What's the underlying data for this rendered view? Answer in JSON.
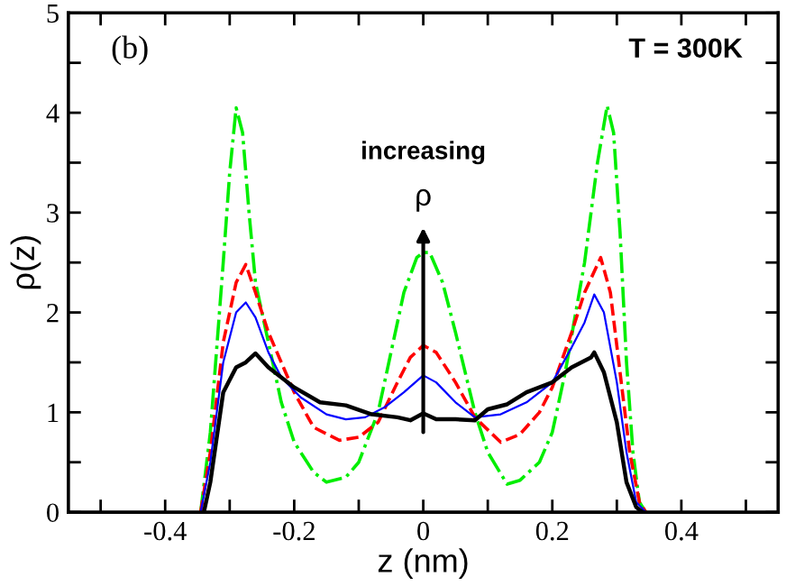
{
  "chart_data": {
    "type": "line",
    "xlabel": "z (nm)",
    "ylabel": "ρ(z)",
    "xlim": [
      -0.55,
      0.55
    ],
    "ylim": [
      0,
      5
    ],
    "xticks": [
      {
        "value": -0.5,
        "label": null
      },
      {
        "value": -0.4,
        "label": "-0.4"
      },
      {
        "value": -0.3,
        "label": null
      },
      {
        "value": -0.2,
        "label": "-0.2"
      },
      {
        "value": -0.1,
        "label": null
      },
      0,
      {
        "value": 0.1,
        "label": null
      },
      0.2,
      {
        "value": 0.3,
        "label": null
      },
      0.4,
      {
        "value": 0.5,
        "label": null
      }
    ],
    "yticks": [
      0,
      {
        "value": 0.5,
        "label": null
      },
      1,
      {
        "value": 1.5,
        "label": null
      },
      2,
      {
        "value": 2.5,
        "label": null
      },
      3,
      {
        "value": 3.5,
        "label": null
      },
      4,
      {
        "value": 4.5,
        "label": null
      },
      5
    ],
    "grid": false,
    "marker": "none",
    "annotations": [
      "(b)",
      "T = 300K",
      "increasing",
      "ρ"
    ],
    "series": [
      {
        "color": "#00ee00",
        "line_style": "dashdot",
        "x": [
          -0.345,
          -0.33,
          -0.31,
          -0.3,
          -0.29,
          -0.28,
          -0.27,
          -0.26,
          -0.24,
          -0.22,
          -0.2,
          -0.17,
          -0.15,
          -0.12,
          -0.1,
          -0.07,
          -0.05,
          -0.03,
          -0.01,
          0,
          0.01,
          0.03,
          0.05,
          0.08,
          0.1,
          0.13,
          0.15,
          0.18,
          0.2,
          0.22,
          0.25,
          0.27,
          0.285,
          0.295,
          0.305,
          0.315,
          0.325,
          0.335,
          0.345
        ],
        "values": [
          0,
          0.8,
          2.5,
          3.4,
          4.05,
          3.8,
          3.0,
          2.3,
          1.7,
          1.1,
          0.7,
          0.4,
          0.3,
          0.35,
          0.5,
          1.0,
          1.6,
          2.2,
          2.55,
          2.6,
          2.6,
          2.3,
          1.8,
          1.0,
          0.6,
          0.28,
          0.32,
          0.5,
          0.8,
          1.4,
          2.5,
          3.5,
          4.07,
          3.8,
          2.8,
          1.5,
          0.6,
          0.1,
          0
        ]
      },
      {
        "color": "#ff0000",
        "line_style": "dashed",
        "x": [
          -0.345,
          -0.33,
          -0.31,
          -0.29,
          -0.275,
          -0.26,
          -0.24,
          -0.2,
          -0.17,
          -0.13,
          -0.1,
          -0.07,
          -0.04,
          -0.02,
          0,
          0.02,
          0.05,
          0.08,
          0.12,
          0.15,
          0.18,
          0.2,
          0.23,
          0.25,
          0.275,
          0.29,
          0.305,
          0.32,
          0.335,
          0.345
        ],
        "values": [
          0,
          0.6,
          1.7,
          2.3,
          2.48,
          2.2,
          1.8,
          1.2,
          0.85,
          0.72,
          0.75,
          0.9,
          1.3,
          1.55,
          1.67,
          1.6,
          1.3,
          0.95,
          0.7,
          0.78,
          1.0,
          1.25,
          1.8,
          2.2,
          2.55,
          2.2,
          1.4,
          0.6,
          0.1,
          0
        ]
      },
      {
        "color": "#0000ff",
        "line_style": "solid",
        "x": [
          -0.345,
          -0.33,
          -0.31,
          -0.29,
          -0.275,
          -0.26,
          -0.24,
          -0.22,
          -0.19,
          -0.15,
          -0.12,
          -0.09,
          -0.06,
          -0.03,
          0,
          0.02,
          0.05,
          0.08,
          0.12,
          0.16,
          0.2,
          0.23,
          0.25,
          0.265,
          0.28,
          0.3,
          0.315,
          0.33,
          0.345
        ],
        "values": [
          0,
          0.5,
          1.5,
          2.0,
          2.1,
          1.95,
          1.6,
          1.35,
          1.15,
          0.98,
          0.93,
          0.95,
          1.05,
          1.2,
          1.37,
          1.3,
          1.1,
          0.95,
          0.98,
          1.1,
          1.3,
          1.65,
          1.9,
          2.18,
          2.0,
          1.3,
          0.6,
          0.1,
          0
        ]
      },
      {
        "color": "#000000",
        "line_style": "solid",
        "x": [
          -0.34,
          -0.33,
          -0.31,
          -0.29,
          -0.275,
          -0.26,
          -0.24,
          -0.2,
          -0.16,
          -0.12,
          -0.08,
          -0.04,
          -0.02,
          0,
          0.02,
          0.05,
          0.08,
          0.1,
          0.13,
          0.16,
          0.2,
          0.23,
          0.26,
          0.265,
          0.28,
          0.3,
          0.315,
          0.33,
          0.34
        ],
        "values": [
          0,
          0.3,
          1.2,
          1.45,
          1.5,
          1.59,
          1.45,
          1.25,
          1.1,
          1.07,
          0.98,
          0.95,
          0.92,
          0.99,
          0.93,
          0.93,
          0.92,
          1.03,
          1.08,
          1.2,
          1.3,
          1.45,
          1.55,
          1.6,
          1.4,
          0.9,
          0.3,
          0.05,
          0
        ]
      }
    ]
  }
}
